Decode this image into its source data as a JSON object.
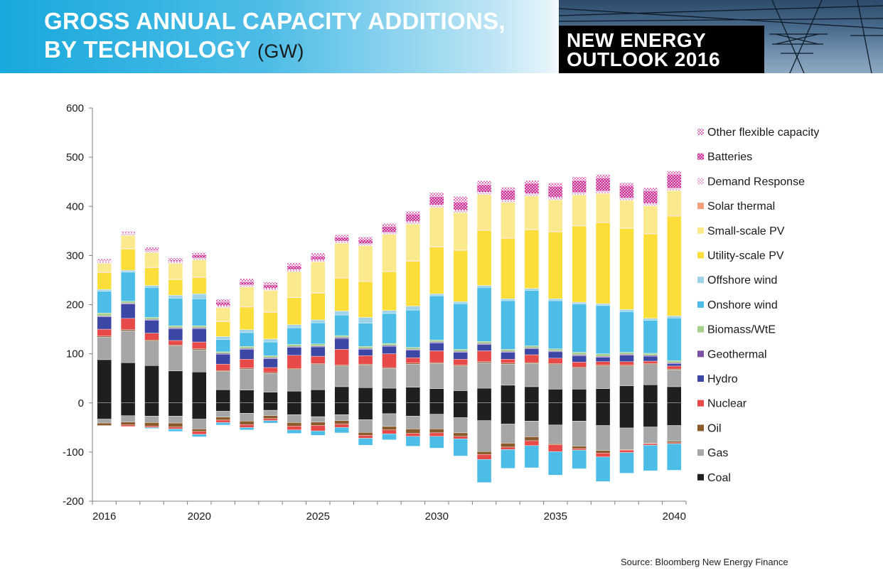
{
  "header": {
    "title_line1": "GROSS ANNUAL CAPACITY ADDITIONS,",
    "title_line2": "BY TECHNOLOGY",
    "title_unit": "(GW)",
    "brand_line1": "NEW ENERGY",
    "brand_line2": "OUTLOOK 2016"
  },
  "source": "Source: Bloomberg New Energy Finance",
  "chart_data": {
    "type": "bar",
    "stacked": true,
    "title": "Gross annual capacity additions, by technology",
    "ylabel": "GW",
    "ylim": [
      -200,
      600
    ],
    "yticks": [
      600,
      500,
      400,
      300,
      200,
      100,
      0,
      -100,
      -200
    ],
    "xticks": [
      "2016",
      "2020",
      "2025",
      "2030",
      "2035",
      "2040"
    ],
    "categories": [
      "2016",
      "2017",
      "2018",
      "2019",
      "2020",
      "2021",
      "2022",
      "2023",
      "2024",
      "2025",
      "2026",
      "2027",
      "2028",
      "2029",
      "2030",
      "2031",
      "2032",
      "2033",
      "2034",
      "2035",
      "2036",
      "2037",
      "2038",
      "2039",
      "2040"
    ],
    "series": [
      {
        "name": "Coal",
        "color": "#1f1f1f",
        "values": [
          88,
          82,
          76,
          65,
          63,
          27,
          26,
          22,
          24,
          27,
          33,
          31,
          30,
          32,
          29,
          25,
          30,
          36,
          33,
          28,
          28,
          29,
          35,
          37,
          33
        ]
      },
      {
        "name": "Gas",
        "color": "#a6a6a6",
        "values": [
          46,
          65,
          50,
          51,
          45,
          37,
          43,
          38,
          44,
          51,
          42,
          46,
          40,
          47,
          51,
          50,
          52,
          43,
          47,
          50,
          43,
          46,
          40,
          41,
          34
        ]
      },
      {
        "name": "Oil",
        "color": "#8b5a2b",
        "values": [
          2,
          2,
          2,
          2,
          2,
          2,
          2,
          2,
          2,
          2,
          2,
          2,
          2,
          2,
          2,
          2,
          2,
          2,
          2,
          2,
          2,
          2,
          2,
          2,
          2
        ]
      },
      {
        "name": "Nuclear",
        "color": "#e84a4a",
        "values": [
          14,
          23,
          14,
          9,
          14,
          13,
          18,
          10,
          27,
          15,
          32,
          17,
          28,
          11,
          24,
          12,
          22,
          8,
          16,
          11,
          10,
          7,
          7,
          5,
          6
        ]
      },
      {
        "name": "Hydro",
        "color": "#3c47a5",
        "values": [
          25,
          29,
          26,
          24,
          27,
          20,
          20,
          18,
          16,
          19,
          22,
          13,
          15,
          15,
          16,
          14,
          13,
          14,
          12,
          13,
          13,
          9,
          13,
          10,
          5
        ]
      },
      {
        "name": "Geothermal",
        "color": "#7b52a3",
        "values": [
          2,
          2,
          2,
          2,
          2,
          2,
          2,
          2,
          2,
          2,
          2,
          2,
          2,
          2,
          2,
          2,
          2,
          2,
          2,
          2,
          2,
          2,
          2,
          2,
          2
        ]
      },
      {
        "name": "Biomass/WtE",
        "color": "#a8d08d",
        "values": [
          6,
          4,
          4,
          4,
          4,
          3,
          4,
          4,
          4,
          4,
          4,
          4,
          4,
          4,
          4,
          4,
          4,
          4,
          4,
          4,
          5,
          5,
          4,
          4,
          4
        ]
      },
      {
        "name": "Onshore wind",
        "color": "#4cbde6",
        "values": [
          44,
          59,
          61,
          56,
          55,
          25,
          28,
          28,
          34,
          43,
          42,
          47,
          61,
          76,
          90,
          93,
          110,
          99,
          113,
          98,
          98,
          98,
          83,
          67,
          87
        ]
      },
      {
        "name": "Offshore wind",
        "color": "#9fd3ea",
        "values": [
          4,
          4,
          4,
          6,
          10,
          6,
          6,
          6,
          6,
          6,
          8,
          12,
          6,
          8,
          4,
          4,
          4,
          4,
          4,
          4,
          4,
          4,
          4,
          4,
          4
        ]
      },
      {
        "name": "Utility-scale PV",
        "color": "#fcde3b",
        "values": [
          34,
          43,
          36,
          32,
          33,
          30,
          46,
          54,
          55,
          54,
          67,
          73,
          79,
          91,
          95,
          104,
          112,
          123,
          119,
          136,
          155,
          165,
          165,
          172,
          203
        ]
      },
      {
        "name": "Solar thermal",
        "color": "#f2a07b",
        "values": [
          1,
          1,
          1,
          1,
          1,
          1,
          1,
          1,
          1,
          1,
          1,
          1,
          1,
          1,
          1,
          1,
          1,
          1,
          1,
          1,
          1,
          1,
          1,
          1,
          1
        ]
      },
      {
        "name": "Small-scale PV",
        "color": "#fbe98d",
        "values": [
          18,
          27,
          30,
          32,
          35,
          28,
          40,
          44,
          52,
          63,
          70,
          72,
          75,
          75,
          80,
          76,
          72,
          72,
          68,
          64,
          62,
          58,
          56,
          56,
          51
        ]
      },
      {
        "name": "Demand Response",
        "color": "#f3cfe7",
        "values": [
          4,
          4,
          4,
          4,
          4,
          4,
          4,
          4,
          4,
          4,
          4,
          4,
          4,
          5,
          5,
          5,
          5,
          5,
          5,
          5,
          5,
          5,
          5,
          5,
          5
        ]
      },
      {
        "name": "Batteries",
        "color": "#d63fa3",
        "values": [
          1,
          1,
          2,
          3,
          6,
          7,
          6,
          7,
          8,
          8,
          8,
          8,
          12,
          15,
          17,
          17,
          15,
          20,
          21,
          23,
          25,
          27,
          25,
          25,
          28
        ]
      },
      {
        "name": "Other flexible capacity",
        "color": "#e792cf",
        "values": [
          4,
          3,
          5,
          4,
          5,
          6,
          7,
          6,
          6,
          6,
          5,
          6,
          6,
          6,
          8,
          11,
          8,
          6,
          6,
          7,
          7,
          7,
          6,
          7,
          7
        ]
      },
      {
        "name": "Coal retirements",
        "color": "#1f1f1f",
        "values": [
          -33,
          -26,
          -27,
          -27,
          -33,
          -17,
          -21,
          -15,
          -24,
          -28,
          -24,
          -34,
          -22,
          -27,
          -23,
          -30,
          -36,
          -43,
          -37,
          -45,
          -37,
          -46,
          -51,
          -49,
          -46
        ]
      },
      {
        "name": "Gas retirements",
        "color": "#a6a6a6",
        "values": [
          -8,
          -13,
          -13,
          -14,
          -20,
          -12,
          -16,
          -11,
          -16,
          -11,
          -12,
          -26,
          -26,
          -26,
          -30,
          -31,
          -63,
          -39,
          -32,
          -38,
          -51,
          -51,
          -44,
          -33,
          -32
        ]
      },
      {
        "name": "Oil retirements",
        "color": "#8b5a2b",
        "values": [
          -5,
          -6,
          -7,
          -8,
          -5,
          -6,
          -7,
          -6,
          -7,
          -7,
          -7,
          -6,
          -7,
          -9,
          -8,
          -7,
          -6,
          -8,
          -8,
          -2,
          -5,
          -5,
          -1,
          -1,
          -3
        ]
      },
      {
        "name": "Nuclear retirements",
        "color": "#e84a4a",
        "values": [
          0,
          -3,
          -3,
          -4,
          -6,
          -5,
          -6,
          -4,
          -8,
          -11,
          -7,
          -6,
          -8,
          -6,
          -7,
          -5,
          -10,
          -5,
          -10,
          -14,
          -3,
          -8,
          -5,
          -3,
          -2
        ]
      },
      {
        "name": "Onshore wind retirements",
        "color": "#4cbde6",
        "values": [
          0,
          0,
          -2,
          -5,
          -5,
          -5,
          -5,
          -5,
          -7,
          -9,
          -11,
          -14,
          -12,
          -20,
          -24,
          -35,
          -47,
          -38,
          -45,
          -48,
          -38,
          -50,
          -42,
          -52,
          -54
        ]
      }
    ],
    "legend": [
      {
        "name": "Other flexible capacity",
        "color": "#e792cf",
        "pattern": true
      },
      {
        "name": "Batteries",
        "color": "#d63fa3",
        "pattern": true
      },
      {
        "name": "Demand Response",
        "color": "#f3cfe7",
        "pattern": true
      },
      {
        "name": "Solar thermal",
        "color": "#f2a07b"
      },
      {
        "name": "Small-scale PV",
        "color": "#fbe98d"
      },
      {
        "name": "Utility-scale PV",
        "color": "#fcde3b"
      },
      {
        "name": "Offshore wind",
        "color": "#9fd3ea"
      },
      {
        "name": "Onshore wind",
        "color": "#4cbde6"
      },
      {
        "name": "Biomass/WtE",
        "color": "#a8d08d"
      },
      {
        "name": "Geothermal",
        "color": "#7b52a3"
      },
      {
        "name": "Hydro",
        "color": "#3c47a5"
      },
      {
        "name": "Nuclear",
        "color": "#e84a4a"
      },
      {
        "name": "Oil",
        "color": "#8b5a2b"
      },
      {
        "name": "Gas",
        "color": "#a6a6a6"
      },
      {
        "name": "Coal",
        "color": "#1f1f1f"
      }
    ],
    "legend_position": "right",
    "grid": false
  }
}
